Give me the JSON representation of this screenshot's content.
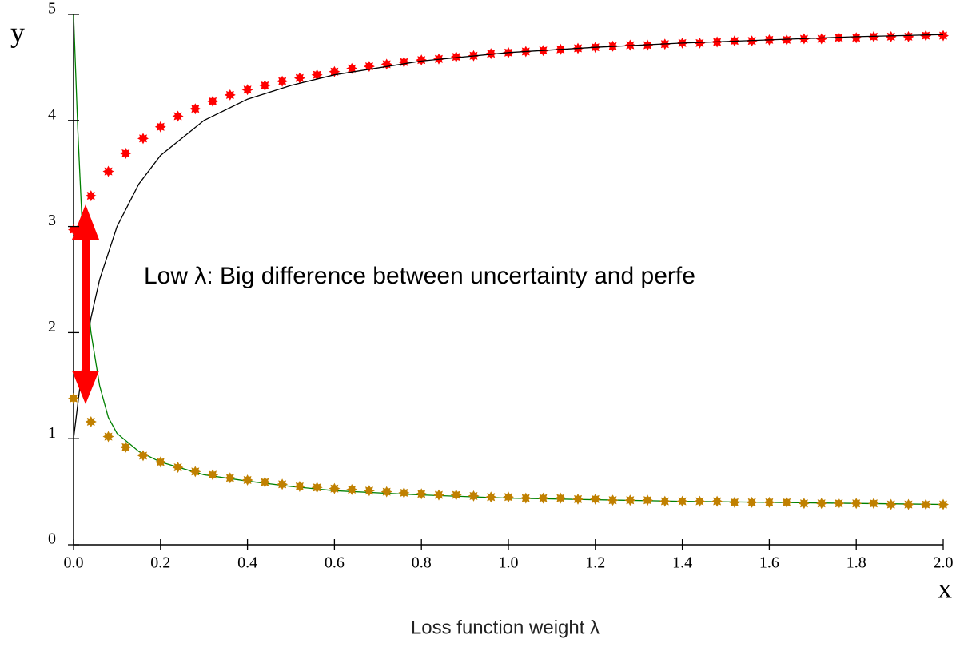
{
  "chart_data": {
    "type": "line",
    "x_label": "x",
    "y_label": "y",
    "axis_caption": "Loss function weight λ",
    "annotation": "Low λ: Big difference between uncertainty and perfe",
    "xlim": [
      0,
      2.0
    ],
    "ylim": [
      0,
      5
    ],
    "xticks": [
      {
        "value": 0,
        "label": "0.0"
      },
      0.2,
      0.4,
      0.6,
      0.8,
      {
        "value": 1,
        "label": "1.0"
      },
      1.2,
      1.4,
      1.6,
      1.8,
      {
        "value": 2,
        "label": "2.0"
      }
    ],
    "yticks": [
      0,
      1,
      2,
      3,
      4,
      5
    ],
    "series": [
      {
        "color": "#ff0000",
        "mode": "markers",
        "x": [
          0,
          0.04,
          0.08,
          0.12,
          0.16,
          0.2,
          0.24,
          0.28,
          0.32,
          0.36,
          0.4,
          0.44,
          0.48,
          0.52,
          0.56,
          0.6,
          0.64,
          0.68,
          0.72,
          0.76,
          0.8,
          0.84,
          0.88,
          0.92,
          0.96,
          1.0,
          1.04,
          1.08,
          1.12,
          1.16,
          1.2,
          1.24,
          1.28,
          1.32,
          1.36,
          1.4,
          1.44,
          1.48,
          1.52,
          1.56,
          1.6,
          1.64,
          1.68,
          1.72,
          1.76,
          1.8,
          1.84,
          1.88,
          1.92,
          1.96,
          2.0
        ],
        "values": [
          2.97,
          3.29,
          3.52,
          3.69,
          3.83,
          3.94,
          4.04,
          4.11,
          4.18,
          4.24,
          4.29,
          4.33,
          4.37,
          4.4,
          4.43,
          4.46,
          4.49,
          4.51,
          4.53,
          4.55,
          4.57,
          4.58,
          4.6,
          4.61,
          4.63,
          4.64,
          4.65,
          4.66,
          4.67,
          4.68,
          4.69,
          4.7,
          4.71,
          4.71,
          4.72,
          4.73,
          4.73,
          4.74,
          4.75,
          4.75,
          4.76,
          4.76,
          4.77,
          4.77,
          4.78,
          4.78,
          4.79,
          4.79,
          4.79,
          4.8,
          4.8
        ]
      },
      {
        "color": "#000000",
        "mode": "line",
        "x": [
          0,
          0.02,
          0.04,
          0.06,
          0.1,
          0.15,
          0.2,
          0.3,
          0.4,
          0.5,
          0.6,
          0.8,
          1.0,
          1.2,
          1.4,
          1.6,
          1.8,
          2.0
        ],
        "values": [
          1.0,
          1.67,
          2.14,
          2.5,
          3.0,
          3.4,
          3.67,
          4.0,
          4.2,
          4.33,
          4.43,
          4.56,
          4.64,
          4.69,
          4.73,
          4.76,
          4.79,
          4.81
        ]
      },
      {
        "color": "#008000",
        "mode": "line",
        "x": [
          0,
          0.01,
          0.02,
          0.03,
          0.04,
          0.06,
          0.08,
          0.1,
          0.15,
          0.2,
          0.3,
          0.4,
          0.5,
          0.6,
          0.8,
          1.0,
          1.4,
          2.0
        ],
        "values": [
          5.0,
          3.9,
          3.0,
          2.4,
          2.0,
          1.5,
          1.2,
          1.05,
          0.88,
          0.78,
          0.66,
          0.6,
          0.55,
          0.51,
          0.47,
          0.44,
          0.41,
          0.38
        ]
      },
      {
        "color": "#c08000",
        "mode": "markers",
        "x": [
          0,
          0.04,
          0.08,
          0.12,
          0.16,
          0.2,
          0.24,
          0.28,
          0.32,
          0.36,
          0.4,
          0.44,
          0.48,
          0.52,
          0.56,
          0.6,
          0.64,
          0.68,
          0.72,
          0.76,
          0.8,
          0.84,
          0.88,
          0.92,
          0.96,
          1.0,
          1.04,
          1.08,
          1.12,
          1.16,
          1.2,
          1.24,
          1.28,
          1.32,
          1.36,
          1.4,
          1.44,
          1.48,
          1.52,
          1.56,
          1.6,
          1.64,
          1.68,
          1.72,
          1.76,
          1.8,
          1.84,
          1.88,
          1.92,
          1.96,
          2.0
        ],
        "values": [
          1.38,
          1.16,
          1.02,
          0.92,
          0.84,
          0.78,
          0.73,
          0.69,
          0.66,
          0.63,
          0.61,
          0.59,
          0.57,
          0.55,
          0.54,
          0.53,
          0.52,
          0.51,
          0.5,
          0.49,
          0.48,
          0.47,
          0.47,
          0.46,
          0.45,
          0.45,
          0.44,
          0.44,
          0.44,
          0.43,
          0.43,
          0.42,
          0.42,
          0.42,
          0.41,
          0.41,
          0.41,
          0.41,
          0.4,
          0.4,
          0.4,
          0.4,
          0.39,
          0.39,
          0.39,
          0.39,
          0.39,
          0.38,
          0.38,
          0.38,
          0.38
        ]
      }
    ]
  }
}
